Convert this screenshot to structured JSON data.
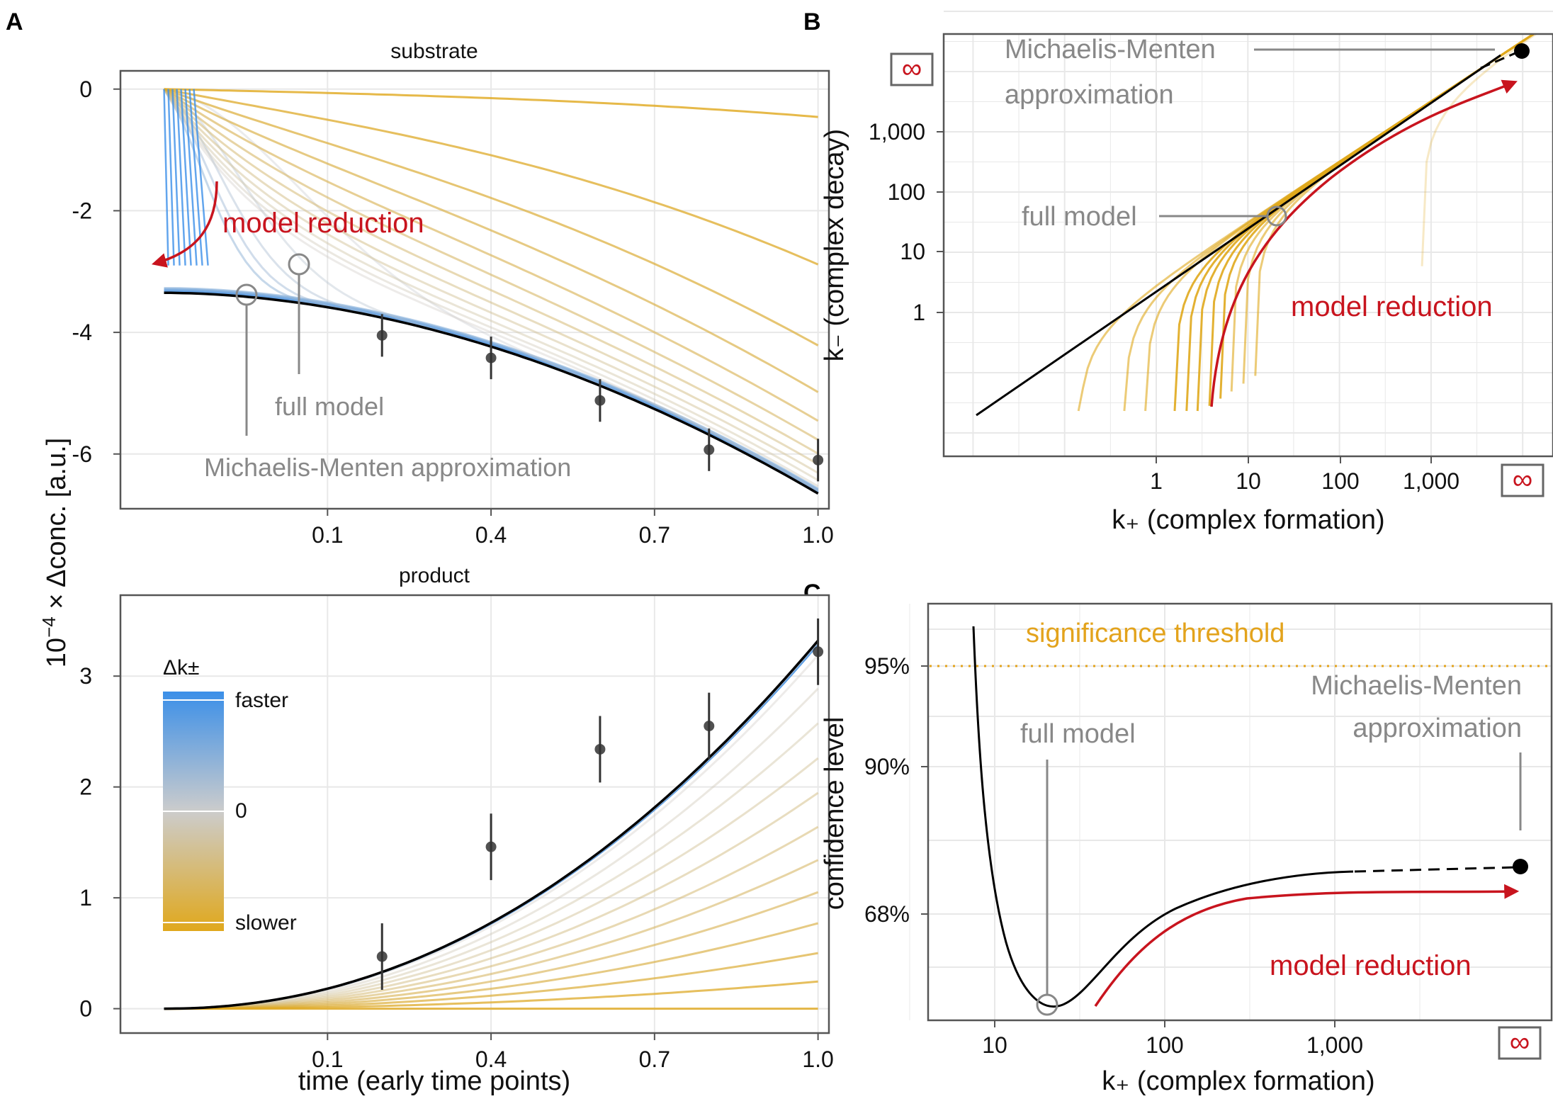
{
  "colors": {
    "panel_border": "#555555",
    "grid": "#e8e8e8",
    "fast": "#3b8fe8",
    "neutral": "#cccccc",
    "slow": "#e0a81c",
    "red": "#c8141e",
    "gray_text": "#888888",
    "black": "#000000",
    "threshold": "#e3a31c"
  },
  "panel_letters": {
    "a": "A",
    "b": "B",
    "c": "C"
  },
  "shared": {
    "ylabel": "10⁻⁴ × Δconc. [a.u.]",
    "xlabel": "time (early time points)"
  },
  "chart_data": [
    {
      "id": "A-substrate",
      "type": "line",
      "title": "substrate",
      "x_ticks": [
        0.1,
        0.4,
        0.7,
        1.0
      ],
      "x_tick_labels": [
        "0.1",
        "0.4",
        "0.7",
        "1.0"
      ],
      "y_ticks": [
        0,
        -2,
        -4,
        -6
      ],
      "y_tick_labels": [
        "0",
        "-2",
        "-4",
        "-6"
      ],
      "xlim": [
        -0.28,
        1.02
      ],
      "ylim": [
        -6.9,
        0.3
      ],
      "data_points": {
        "x": [
          0.2,
          0.4,
          0.6,
          0.8,
          1.0
        ],
        "y": [
          -4.05,
          -4.42,
          -5.12,
          -5.93,
          -6.1
        ],
        "err": [
          0.35,
          0.35,
          0.35,
          0.35,
          0.35
        ]
      },
      "annotations": {
        "model_reduction": "model reduction",
        "full_model": "full model",
        "mm": "Michaelis-Menten approximation"
      }
    },
    {
      "id": "A-product",
      "type": "line",
      "title": "product",
      "x_ticks": [
        0.1,
        0.4,
        0.7,
        1.0
      ],
      "x_tick_labels": [
        "0.1",
        "0.4",
        "0.7",
        "1.0"
      ],
      "y_ticks": [
        0,
        1,
        2,
        3
      ],
      "y_tick_labels": [
        "0",
        "1",
        "2",
        "3"
      ],
      "xlim": [
        -0.28,
        1.02
      ],
      "ylim": [
        -0.22,
        3.73
      ],
      "data_points": {
        "x": [
          0.2,
          0.4,
          0.6,
          0.8,
          1.0
        ],
        "y": [
          0.47,
          1.46,
          2.34,
          2.55,
          3.22
        ],
        "err": [
          0.3,
          0.3,
          0.3,
          0.3,
          0.3
        ]
      },
      "legend": {
        "title": "Δk±",
        "labels": [
          "faster",
          "0",
          "slower"
        ]
      }
    },
    {
      "id": "B",
      "type": "line",
      "xlabel": "k₊ (complex formation)",
      "ylabel": "k₋ (complex decay)",
      "x_scale": "log",
      "y_scale": "log",
      "x_ticks": [
        1,
        10,
        100,
        1000
      ],
      "x_tick_labels": [
        "1",
        "10",
        "100",
        "1,000"
      ],
      "y_ticks": [
        1,
        10,
        100,
        1000
      ],
      "y_tick_labels": [
        "1",
        "10",
        "100",
        "1,000"
      ],
      "infinity_label": "∞",
      "annotations": {
        "mm_line1": "Michaelis-Menten",
        "mm_line2": "approximation",
        "full_model": "full model",
        "model_reduction": "model reduction"
      }
    },
    {
      "id": "C",
      "type": "line",
      "xlabel": "k₊ (complex formation)",
      "ylabel": "confidence level",
      "x_scale": "log",
      "x_ticks": [
        10,
        100,
        1000
      ],
      "x_tick_labels": [
        "10",
        "100",
        "1,000"
      ],
      "y_tick_labels": [
        "95%",
        "90%",
        "68%"
      ],
      "infinity_label": "∞",
      "annotations": {
        "threshold": "significance threshold",
        "mm_line1": "Michaelis-Menten",
        "mm_line2": "approximation",
        "full_model": "full model",
        "model_reduction": "model reduction"
      }
    }
  ]
}
